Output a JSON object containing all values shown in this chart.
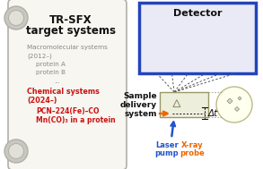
{
  "title_line1": "TR-SFX",
  "title_line2": "target systems",
  "macro_header_line1": "Macromolecular systems",
  "macro_header_line2": "(2012–)",
  "macro_item1": "protein A",
  "macro_item2": "protein B",
  "macro_dots": "...",
  "chem_header_line1": "Chemical systems",
  "chem_header_line2": "(2024–)",
  "chem_item1": "PCN–224(Fe)–CO",
  "chem_item2": "Mn(CO)₃ in a protein",
  "detector_label": "Detector",
  "sample_label_line1": "Sample",
  "sample_label_line2": "delivery",
  "sample_label_line3": "system",
  "laser_label_line1": "Laser",
  "laser_label_line2": "pump",
  "xray_label_line1": "X-ray",
  "xray_label_line2": "probe",
  "delta_t": "Δt",
  "scroll_bg": "#f7f6f0",
  "scroll_border": "#b0b0a8",
  "scroll_curl_bg": "#c8c8c0",
  "detector_bg": "#eaeaf7",
  "detector_border": "#2244bb",
  "sample_bg": "#eeeedd",
  "fig_bg": "#ffffff",
  "red_color": "#cc1111",
  "blue_color": "#2255cc",
  "orange_color": "#ee6600",
  "dark_gray": "#888888",
  "black": "#111111",
  "line_gray": "#555555"
}
